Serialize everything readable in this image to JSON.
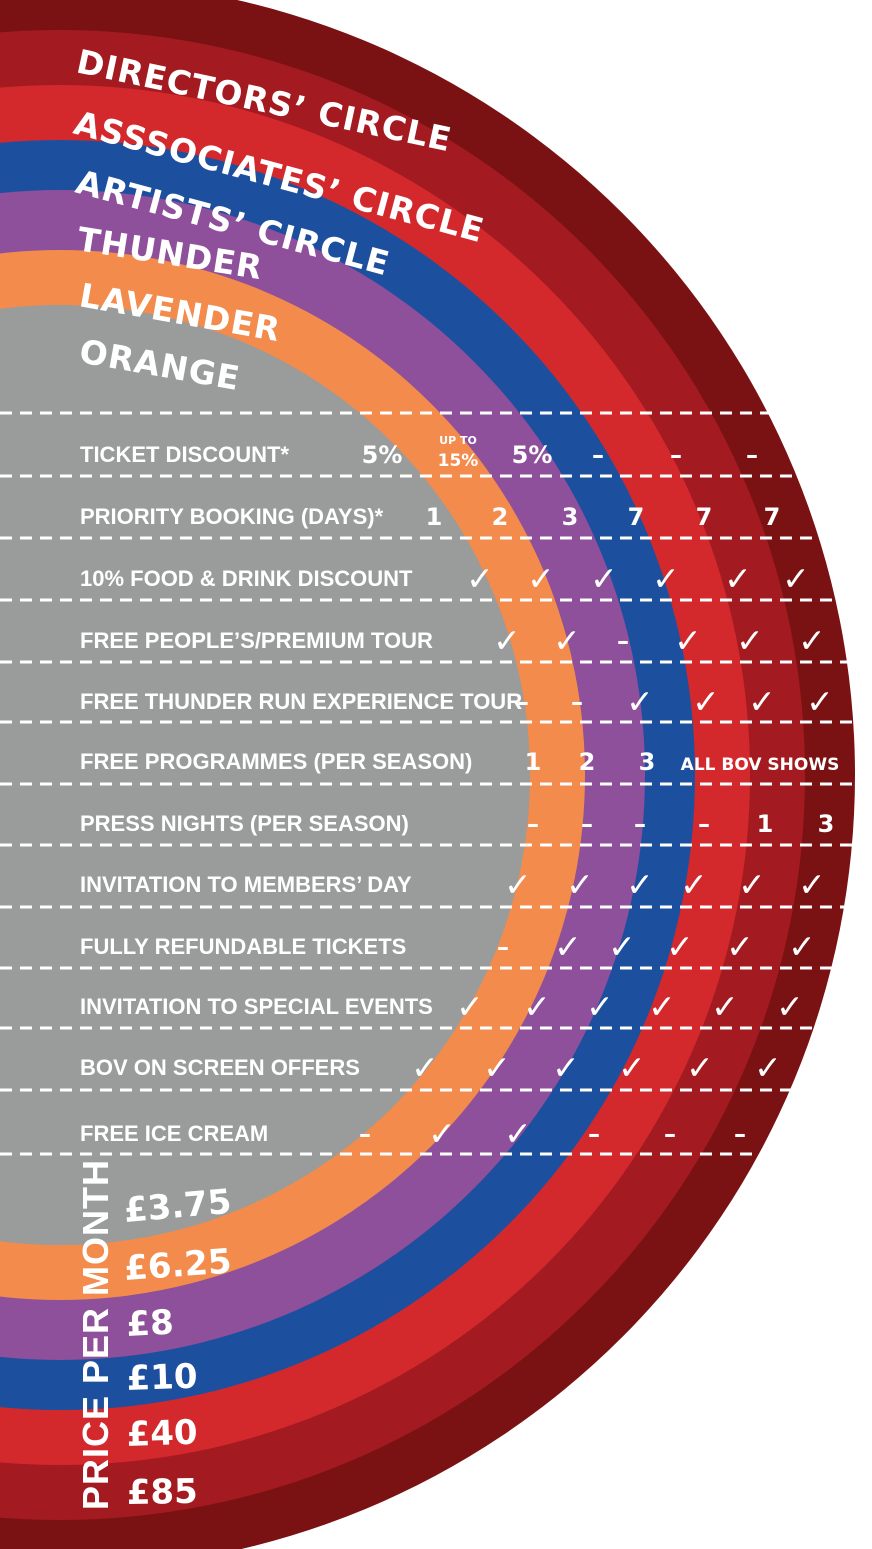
{
  "tiers": [
    {
      "name": "DIRECTORS’ CIRCLE",
      "color": "#7a1214",
      "price": "£85"
    },
    {
      "name": "ASSSOCIATES’ CIRCLE",
      "color": "#a31b20",
      "price": "£40"
    },
    {
      "name": "ARTISTS’ CIRCLE",
      "color": "#d3292d",
      "price": "£10"
    },
    {
      "name": "THUNDER",
      "color": "#1d4f9f",
      "price": "£8"
    },
    {
      "name": "LAVENDER",
      "color": "#8e4f9b",
      "price": "£6.25"
    },
    {
      "name": "ORANGE",
      "color": "#f28b4c",
      "price": "£3.75"
    }
  ],
  "center_color": "#9a9b9b",
  "price_label": "PRICE PER MONTH",
  "benefits": [
    {
      "label": "TICKET DISCOUNT*",
      "values": [
        "5%",
        "UP TO|15%",
        "5%",
        "–",
        "–",
        "–"
      ]
    },
    {
      "label": "PRIORITY BOOKING (DAYS)*",
      "values": [
        "1",
        "2",
        "3",
        "7",
        "7",
        "7"
      ]
    },
    {
      "label": "10% FOOD & DRINK DISCOUNT",
      "values": [
        "✓",
        "✓",
        "✓",
        "✓",
        "✓",
        "✓"
      ]
    },
    {
      "label": "FREE PEOPLE’S/PREMIUM TOUR",
      "values": [
        "✓",
        "✓",
        "–",
        "✓",
        "✓",
        "✓"
      ]
    },
    {
      "label": "FREE THUNDER RUN EXPERIENCE TOUR",
      "values": [
        "–",
        "–",
        "✓",
        "✓",
        "✓",
        "✓"
      ]
    },
    {
      "label": "FREE PROGRAMMES (PER SEASON)",
      "values": [
        "1",
        "2",
        "3",
        "ALL BOV SHOWS"
      ]
    },
    {
      "label": "PRESS NIGHTS (PER SEASON)",
      "values": [
        "–",
        "–",
        "–",
        "–",
        "1",
        "3"
      ]
    },
    {
      "label": "INVITATION TO MEMBERS’ DAY",
      "values": [
        "✓",
        "✓",
        "✓",
        "✓",
        "✓",
        "✓"
      ]
    },
    {
      "label": "FULLY REFUNDABLE TICKETS",
      "values": [
        "–",
        "✓",
        "✓",
        "✓",
        "✓",
        "✓"
      ]
    },
    {
      "label": "INVITATION TO SPECIAL EVENTS",
      "values": [
        "✓",
        "✓",
        "✓",
        "✓",
        "✓",
        "✓"
      ]
    },
    {
      "label": "BOV ON SCREEN OFFERS",
      "values": [
        "✓",
        "✓",
        "✓",
        "✓",
        "✓",
        "✓"
      ]
    },
    {
      "label": "FREE ICE CREAM",
      "values": [
        "–",
        "✓",
        "✓",
        "–",
        "–",
        "–"
      ]
    }
  ]
}
